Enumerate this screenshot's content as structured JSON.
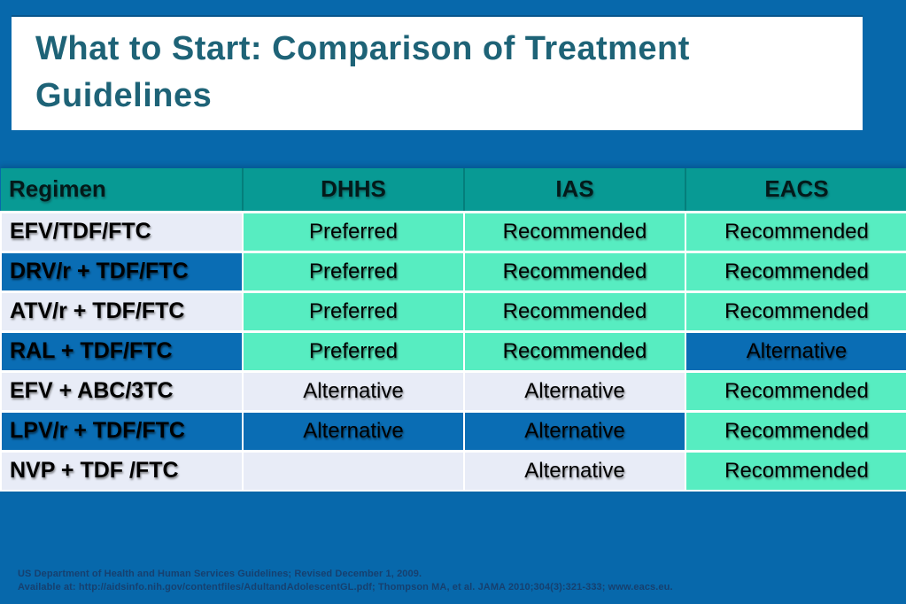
{
  "slide": {
    "title": "What to Start: Comparison of Treatment Guidelines",
    "footer_line1": "US Department of Health and Human Services Guidelines; Revised December 1, 2009.",
    "footer_line2": "Available at: http://aidsinfo.nih.gov/contentfiles/AdultandAdolescentGL.pdf; Thompson MA, et al. JAMA 2010;304(3):321-333; www.eacs.eu."
  },
  "colors": {
    "background_blue": "#0768ab",
    "row_blue": "#0a6db4",
    "header_teal": "#089a94",
    "header_divider_teal": "#047e7b",
    "mint_green": "#57edc1",
    "lavender": "#e8ecf7",
    "title_text_teal": "#1e6377",
    "footer_text_navy": "#16406f",
    "cell_text": "#000000"
  },
  "table": {
    "columns": [
      "Regimen",
      "DHHS",
      "IAS",
      "EACS"
    ],
    "rows": [
      {
        "regimen": "EFV/TDF/FTC",
        "tone": "light",
        "cells": [
          {
            "text": "Preferred",
            "mint": true
          },
          {
            "text": "Recommended",
            "mint": true
          },
          {
            "text": "Recommended",
            "mint": true
          }
        ]
      },
      {
        "regimen": "DRV/r + TDF/FTC",
        "tone": "blue",
        "cells": [
          {
            "text": "Preferred",
            "mint": true
          },
          {
            "text": "Recommended",
            "mint": true
          },
          {
            "text": "Recommended",
            "mint": true
          }
        ]
      },
      {
        "regimen": "ATV/r + TDF/FTC",
        "tone": "light",
        "cells": [
          {
            "text": "Preferred",
            "mint": true
          },
          {
            "text": "Recommended",
            "mint": true
          },
          {
            "text": "Recommended",
            "mint": true
          }
        ]
      },
      {
        "regimen": "RAL + TDF/FTC",
        "tone": "blue",
        "cells": [
          {
            "text": "Preferred",
            "mint": true
          },
          {
            "text": "Recommended",
            "mint": true
          },
          {
            "text": "Alternative",
            "mint": false
          }
        ]
      },
      {
        "regimen": "EFV + ABC/3TC",
        "tone": "light",
        "cells": [
          {
            "text": "Alternative",
            "mint": false
          },
          {
            "text": "Alternative",
            "mint": false
          },
          {
            "text": "Recommended",
            "mint": true
          }
        ]
      },
      {
        "regimen": "LPV/r + TDF/FTC",
        "tone": "blue",
        "cells": [
          {
            "text": "Alternative",
            "mint": false
          },
          {
            "text": "Alternative",
            "mint": false
          },
          {
            "text": "Recommended",
            "mint": true
          }
        ]
      },
      {
        "regimen": "NVP + TDF /FTC",
        "tone": "light",
        "cells": [
          {
            "text": "",
            "mint": false
          },
          {
            "text": "Alternative",
            "mint": false
          },
          {
            "text": "Recommended",
            "mint": true
          }
        ]
      }
    ]
  }
}
